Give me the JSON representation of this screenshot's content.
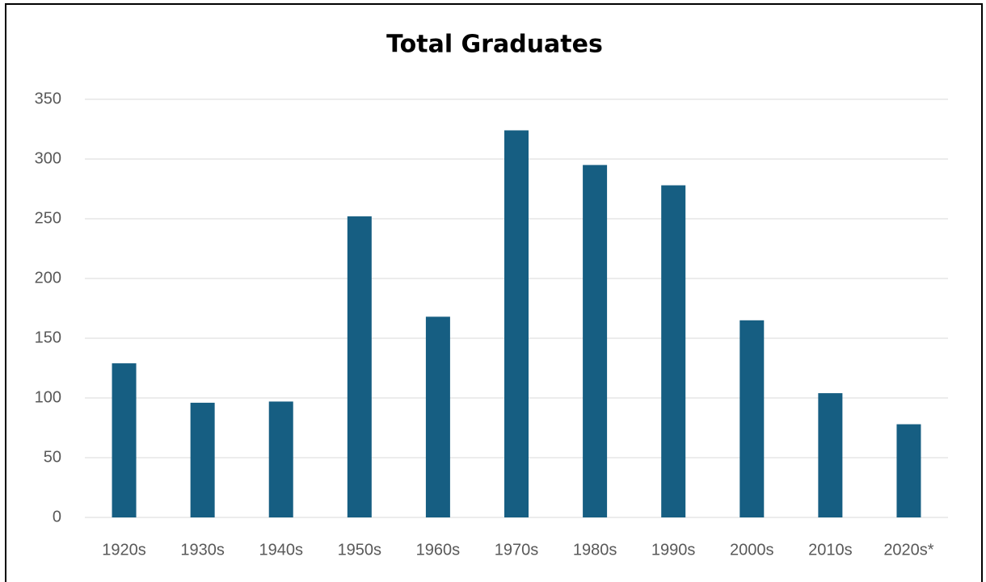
{
  "chart_data": {
    "type": "bar",
    "title": "Total Graduates",
    "categories": [
      "1920s",
      "1930s",
      "1940s",
      "1950s",
      "1960s",
      "1970s",
      "1980s",
      "1990s",
      "2000s",
      "2010s",
      "2020s*"
    ],
    "values": [
      129,
      96,
      97,
      252,
      168,
      324,
      295,
      278,
      165,
      104,
      78
    ],
    "color": "#165e82",
    "ylim": [
      0,
      350
    ],
    "yticks": [
      0,
      50,
      100,
      150,
      200,
      250,
      300,
      350
    ],
    "grid": true
  }
}
